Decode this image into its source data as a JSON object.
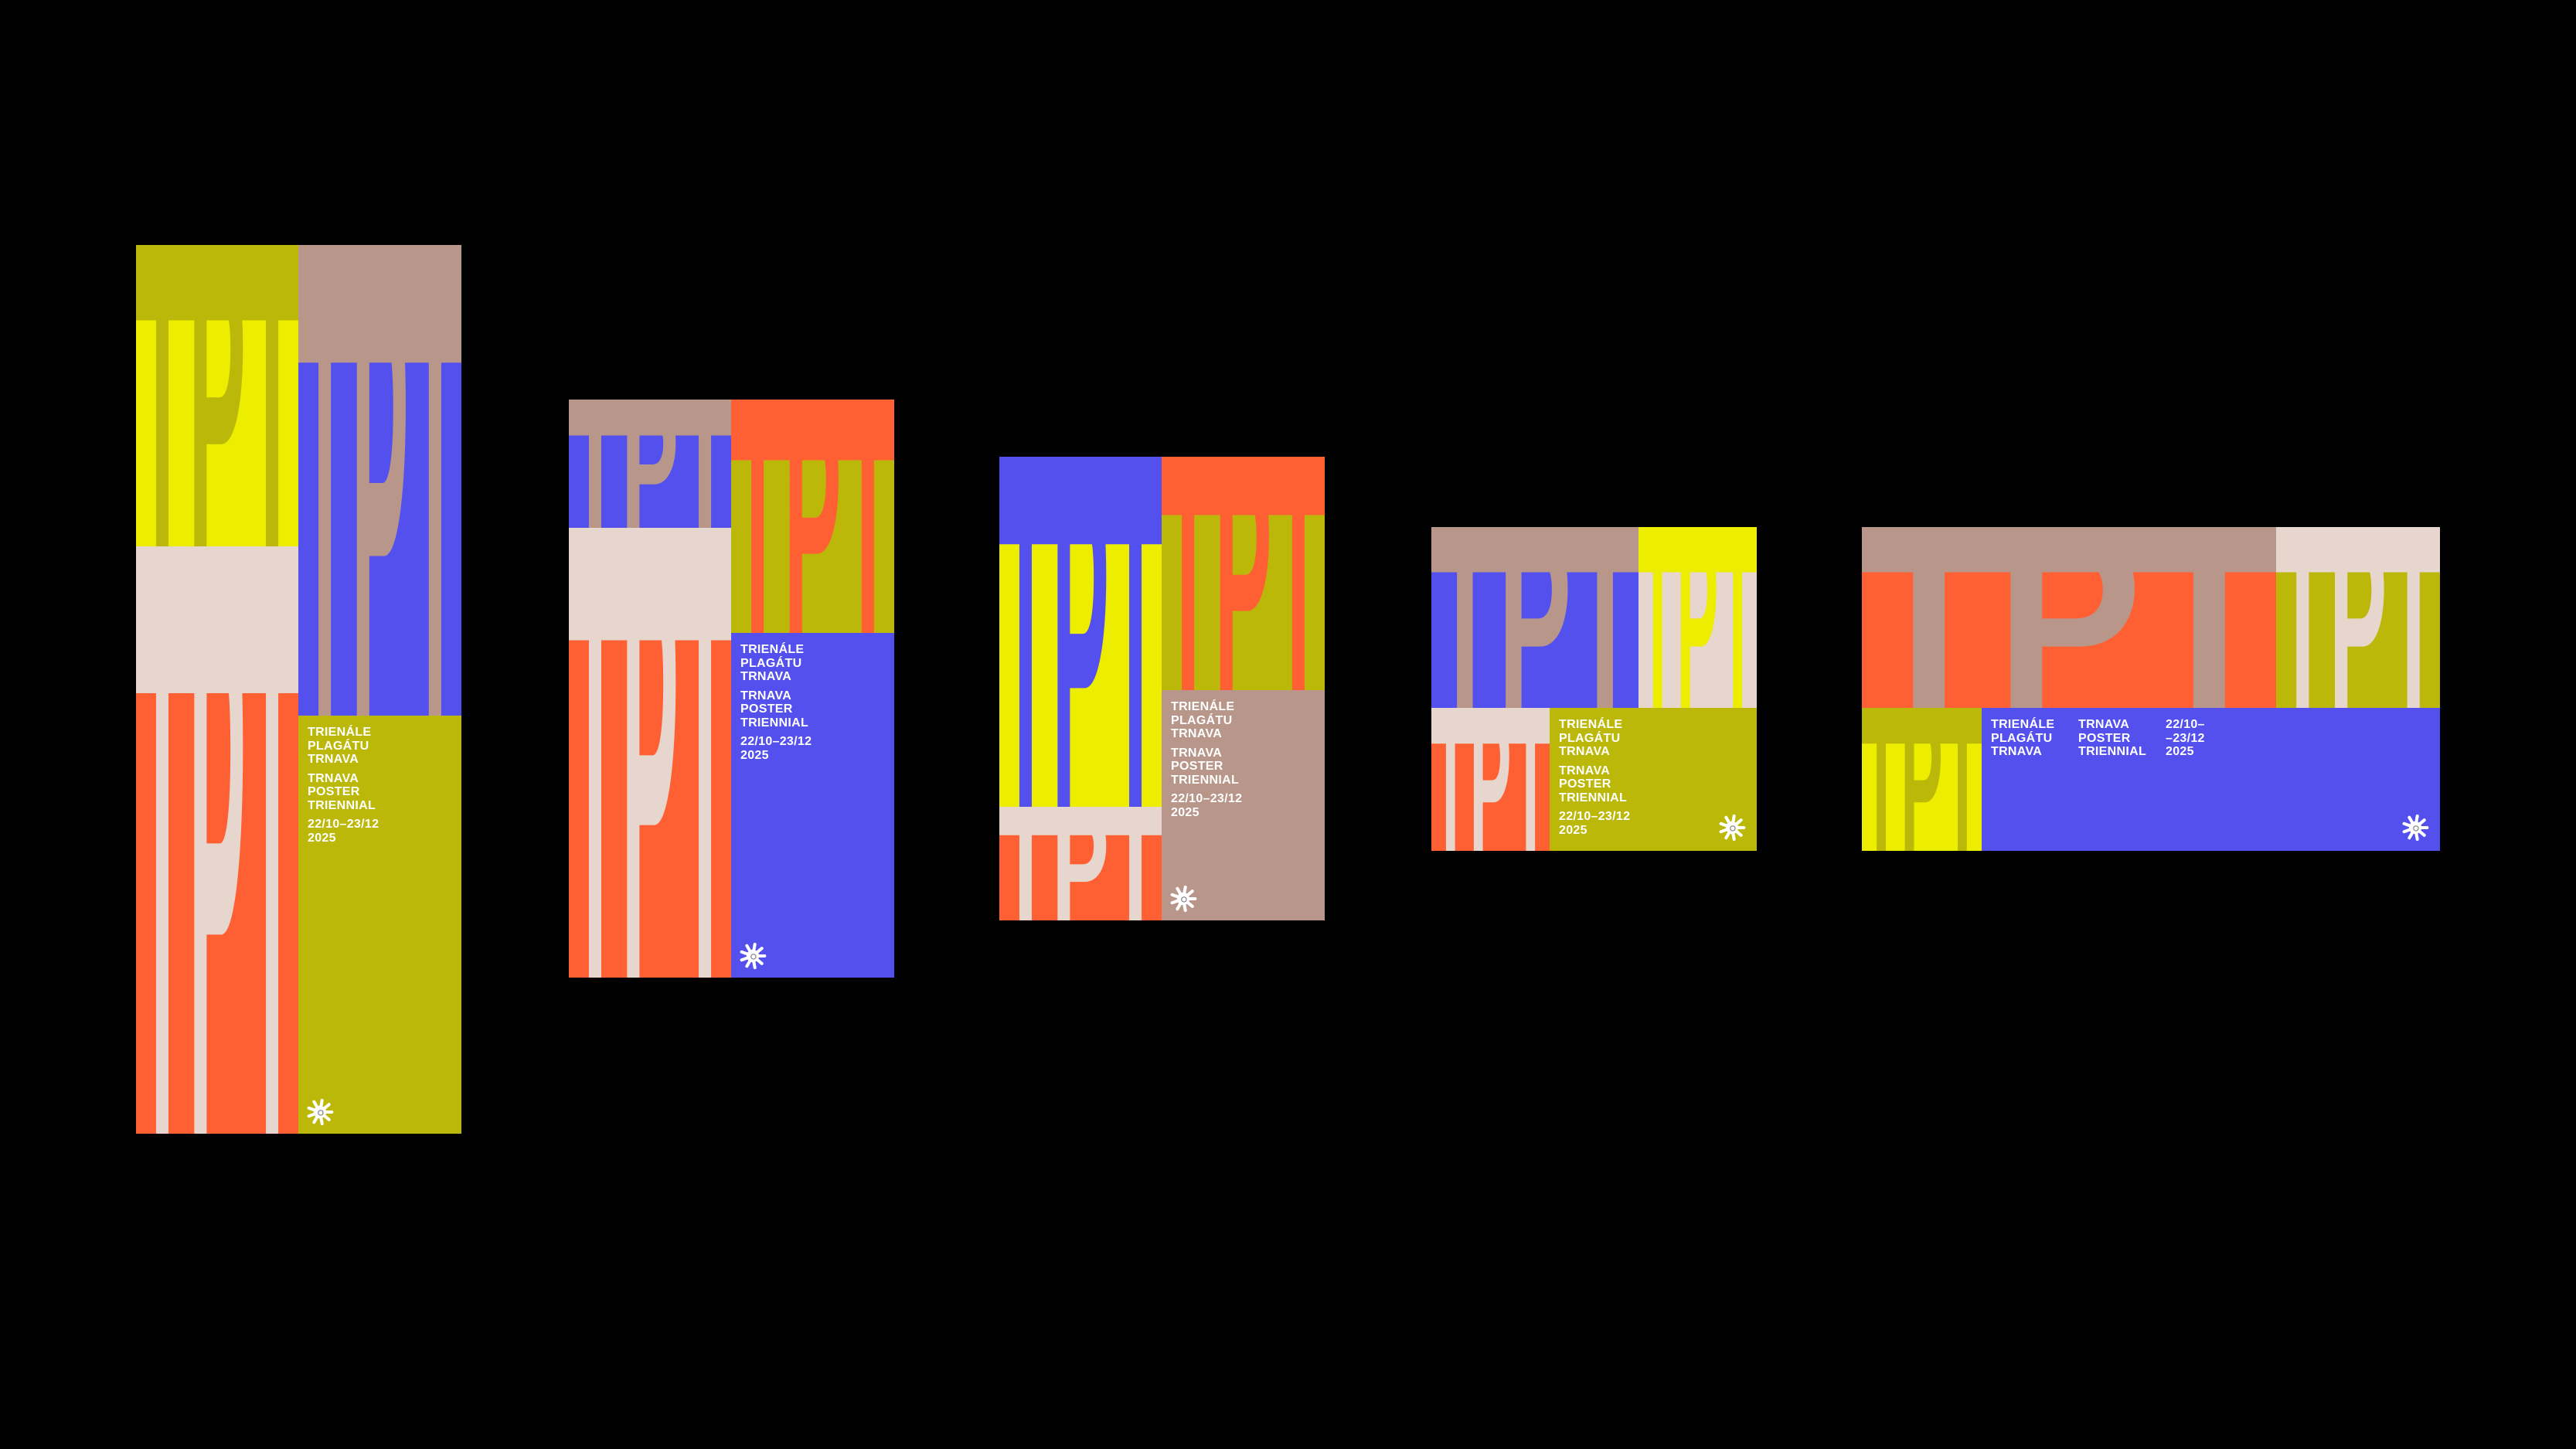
{
  "palette": {
    "background": "#000000",
    "olive": "#BCB80A",
    "yellow": "#EDED00",
    "blue": "#5450EE",
    "tan": "#B9968A",
    "orange": "#FF6033",
    "cream": "#E6D6CE",
    "text": "#FFFFFF"
  },
  "tile_lettering": "TPT",
  "text": {
    "slovak": [
      "TRIENÁLE",
      "PLAGÁTU",
      "TRNAVA"
    ],
    "english": [
      "TRNAVA",
      "POSTER",
      "TRIENNIAL"
    ],
    "dates": [
      "22/10–23/12",
      "2025"
    ],
    "dates_split": [
      "22/10–",
      "–23/12",
      "2025"
    ]
  },
  "logo_icon": "sun-star-logo-icon",
  "posters": [
    {
      "format": "tall-vertical",
      "panel_color": "olive"
    },
    {
      "format": "vertical",
      "panel_color": "blue"
    },
    {
      "format": "portrait",
      "panel_color": "tan"
    },
    {
      "format": "landscape",
      "panel_color": "olive"
    },
    {
      "format": "wide-landscape",
      "panel_color": "blue"
    }
  ]
}
